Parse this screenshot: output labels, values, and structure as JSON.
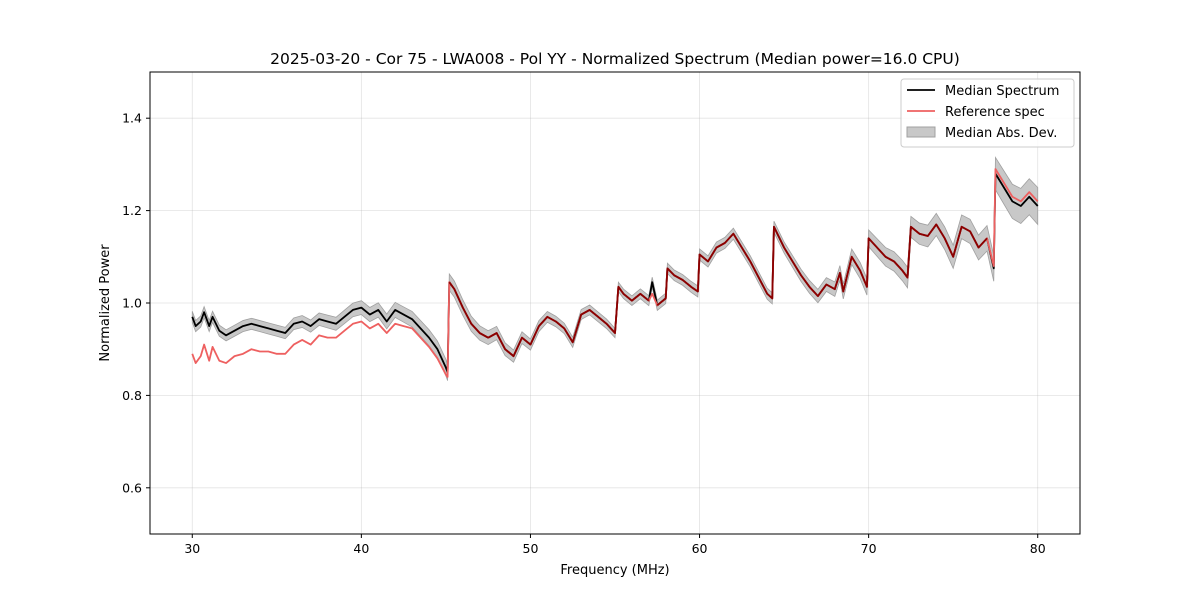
{
  "chart_data": {
    "type": "line",
    "title": "2025-03-20 - Cor 75 - LWA008 - Pol YY - Normalized Spectrum (Median power=16.0 CPU)",
    "xlabel": "Frequency (MHz)",
    "ylabel": "Normalized Power",
    "xlim": [
      27.5,
      82.5
    ],
    "ylim": [
      0.5,
      1.5
    ],
    "xticks": [
      30,
      40,
      50,
      60,
      70,
      80
    ],
    "yticks": [
      0.6,
      0.8,
      1.0,
      1.2,
      1.4
    ],
    "xtick_labels": [
      "30",
      "40",
      "50",
      "60",
      "70",
      "80"
    ],
    "ytick_labels": [
      "0.6",
      "0.8",
      "1.0",
      "1.2",
      "1.4"
    ],
    "grid": true,
    "legend_position": "top-right",
    "colors": {
      "median": "#000000",
      "reference": "#ee6060",
      "overlap": "#8b0000",
      "mad_fill": "#c8c8c8",
      "mad_edge": "#a0a0a0"
    },
    "series": [
      {
        "name": "Median Spectrum",
        "x": [
          30.0,
          30.2,
          30.5,
          30.7,
          31.0,
          31.2,
          31.6,
          32.0,
          32.5,
          33.0,
          33.5,
          34.0,
          34.5,
          35.0,
          35.5,
          36.0,
          36.5,
          37.0,
          37.5,
          38.0,
          38.5,
          39.0,
          39.5,
          40.0,
          40.5,
          41.0,
          41.5,
          42.0,
          42.5,
          43.0,
          43.5,
          44.0,
          44.5,
          45.0,
          45.1,
          45.2,
          45.5,
          46.0,
          46.5,
          47.0,
          47.5,
          48.0,
          48.5,
          49.0,
          49.5,
          50.0,
          50.5,
          51.0,
          51.5,
          52.0,
          52.5,
          53.0,
          53.5,
          54.0,
          54.5,
          55.0,
          55.2,
          55.5,
          56.0,
          56.5,
          57.0,
          57.2,
          57.5,
          58.0,
          58.1,
          58.5,
          59.0,
          59.5,
          59.9,
          60.0,
          60.5,
          61.0,
          61.5,
          62.0,
          62.5,
          63.0,
          63.5,
          64.0,
          64.3,
          64.4,
          65.0,
          65.5,
          66.0,
          66.5,
          67.0,
          67.5,
          68.0,
          68.3,
          68.5,
          69.0,
          69.5,
          69.9,
          70.0,
          70.5,
          71.0,
          71.5,
          72.0,
          72.3,
          72.5,
          73.0,
          73.5,
          74.0,
          74.5,
          75.0,
          75.5,
          76.0,
          76.5,
          77.0,
          77.4,
          77.5,
          78.0,
          78.5,
          79.0,
          79.5,
          80.0
        ],
        "y": [
          0.97,
          0.95,
          0.96,
          0.98,
          0.95,
          0.97,
          0.94,
          0.93,
          0.94,
          0.95,
          0.955,
          0.95,
          0.945,
          0.94,
          0.935,
          0.955,
          0.96,
          0.95,
          0.965,
          0.96,
          0.955,
          0.97,
          0.985,
          0.99,
          0.975,
          0.985,
          0.96,
          0.985,
          0.975,
          0.965,
          0.945,
          0.925,
          0.9,
          0.86,
          0.85,
          1.045,
          1.03,
          0.99,
          0.955,
          0.935,
          0.925,
          0.935,
          0.9,
          0.885,
          0.925,
          0.91,
          0.95,
          0.97,
          0.96,
          0.945,
          0.915,
          0.975,
          0.985,
          0.97,
          0.955,
          0.935,
          1.035,
          1.02,
          1.005,
          1.02,
          1.005,
          1.045,
          0.995,
          1.01,
          1.075,
          1.06,
          1.05,
          1.035,
          1.025,
          1.105,
          1.09,
          1.12,
          1.13,
          1.15,
          1.12,
          1.09,
          1.055,
          1.02,
          1.01,
          1.165,
          1.12,
          1.09,
          1.06,
          1.035,
          1.015,
          1.04,
          1.03,
          1.065,
          1.025,
          1.1,
          1.07,
          1.035,
          1.14,
          1.12,
          1.1,
          1.09,
          1.07,
          1.055,
          1.165,
          1.15,
          1.145,
          1.17,
          1.14,
          1.1,
          1.165,
          1.155,
          1.12,
          1.14,
          1.075,
          1.28,
          1.25,
          1.22,
          1.21,
          1.23,
          1.21
        ]
      },
      {
        "name": "Reference spec",
        "x": [
          30.0,
          30.2,
          30.5,
          30.7,
          31.0,
          31.2,
          31.6,
          32.0,
          32.5,
          33.0,
          33.5,
          34.0,
          34.5,
          35.0,
          35.5,
          36.0,
          36.5,
          37.0,
          37.5,
          38.0,
          38.5,
          39.0,
          39.5,
          40.0,
          40.5,
          41.0,
          41.5,
          42.0,
          42.5,
          43.0,
          43.5,
          44.0,
          44.5,
          45.0,
          45.1,
          45.2,
          45.5,
          46.0,
          46.5,
          47.0,
          47.5,
          48.0,
          48.5,
          49.0,
          49.5,
          50.0,
          50.5,
          51.0,
          51.5,
          52.0,
          52.5,
          53.0,
          53.5,
          54.0,
          54.5,
          55.0,
          55.2,
          55.5,
          56.0,
          56.5,
          57.0,
          57.2,
          57.5,
          58.0,
          58.1,
          58.5,
          59.0,
          59.5,
          59.9,
          60.0,
          60.5,
          61.0,
          61.5,
          62.0,
          62.5,
          63.0,
          63.5,
          64.0,
          64.3,
          64.4,
          65.0,
          65.5,
          66.0,
          66.5,
          67.0,
          67.5,
          68.0,
          68.3,
          68.5,
          69.0,
          69.5,
          69.9,
          70.0,
          70.5,
          71.0,
          71.5,
          72.0,
          72.3,
          72.5,
          73.0,
          73.5,
          74.0,
          74.5,
          75.0,
          75.5,
          76.0,
          76.5,
          77.0,
          77.4,
          77.5,
          78.0,
          78.5,
          79.0,
          79.5,
          80.0
        ],
        "y": [
          0.89,
          0.87,
          0.885,
          0.91,
          0.875,
          0.905,
          0.875,
          0.87,
          0.885,
          0.89,
          0.9,
          0.895,
          0.895,
          0.89,
          0.89,
          0.91,
          0.92,
          0.91,
          0.93,
          0.925,
          0.925,
          0.94,
          0.955,
          0.96,
          0.945,
          0.955,
          0.935,
          0.955,
          0.95,
          0.945,
          0.925,
          0.905,
          0.88,
          0.845,
          0.84,
          1.045,
          1.03,
          0.99,
          0.955,
          0.935,
          0.925,
          0.935,
          0.9,
          0.885,
          0.925,
          0.91,
          0.95,
          0.97,
          0.96,
          0.945,
          0.915,
          0.975,
          0.985,
          0.97,
          0.955,
          0.935,
          1.035,
          1.02,
          1.005,
          1.02,
          1.005,
          1.02,
          0.995,
          1.01,
          1.075,
          1.06,
          1.05,
          1.035,
          1.025,
          1.105,
          1.09,
          1.12,
          1.13,
          1.15,
          1.12,
          1.09,
          1.055,
          1.02,
          1.01,
          1.165,
          1.12,
          1.09,
          1.06,
          1.035,
          1.015,
          1.04,
          1.03,
          1.065,
          1.025,
          1.1,
          1.07,
          1.035,
          1.14,
          1.12,
          1.1,
          1.09,
          1.07,
          1.055,
          1.165,
          1.15,
          1.145,
          1.17,
          1.14,
          1.1,
          1.165,
          1.155,
          1.12,
          1.14,
          1.08,
          1.29,
          1.26,
          1.23,
          1.22,
          1.24,
          1.22
        ]
      }
    ],
    "band": {
      "name": "Median Abs. Dev.",
      "around": "Median Spectrum",
      "x": [
        30.0,
        35.0,
        40.0,
        45.0,
        50.0,
        55.0,
        60.0,
        65.0,
        70.0,
        72.0,
        75.0,
        77.4,
        77.5,
        80.0
      ],
      "halfwidth": [
        0.012,
        0.012,
        0.015,
        0.018,
        0.012,
        0.01,
        0.012,
        0.012,
        0.018,
        0.022,
        0.025,
        0.028,
        0.035,
        0.04
      ]
    },
    "legend": [
      "Median Spectrum",
      "Reference spec",
      "Median Abs. Dev."
    ]
  }
}
